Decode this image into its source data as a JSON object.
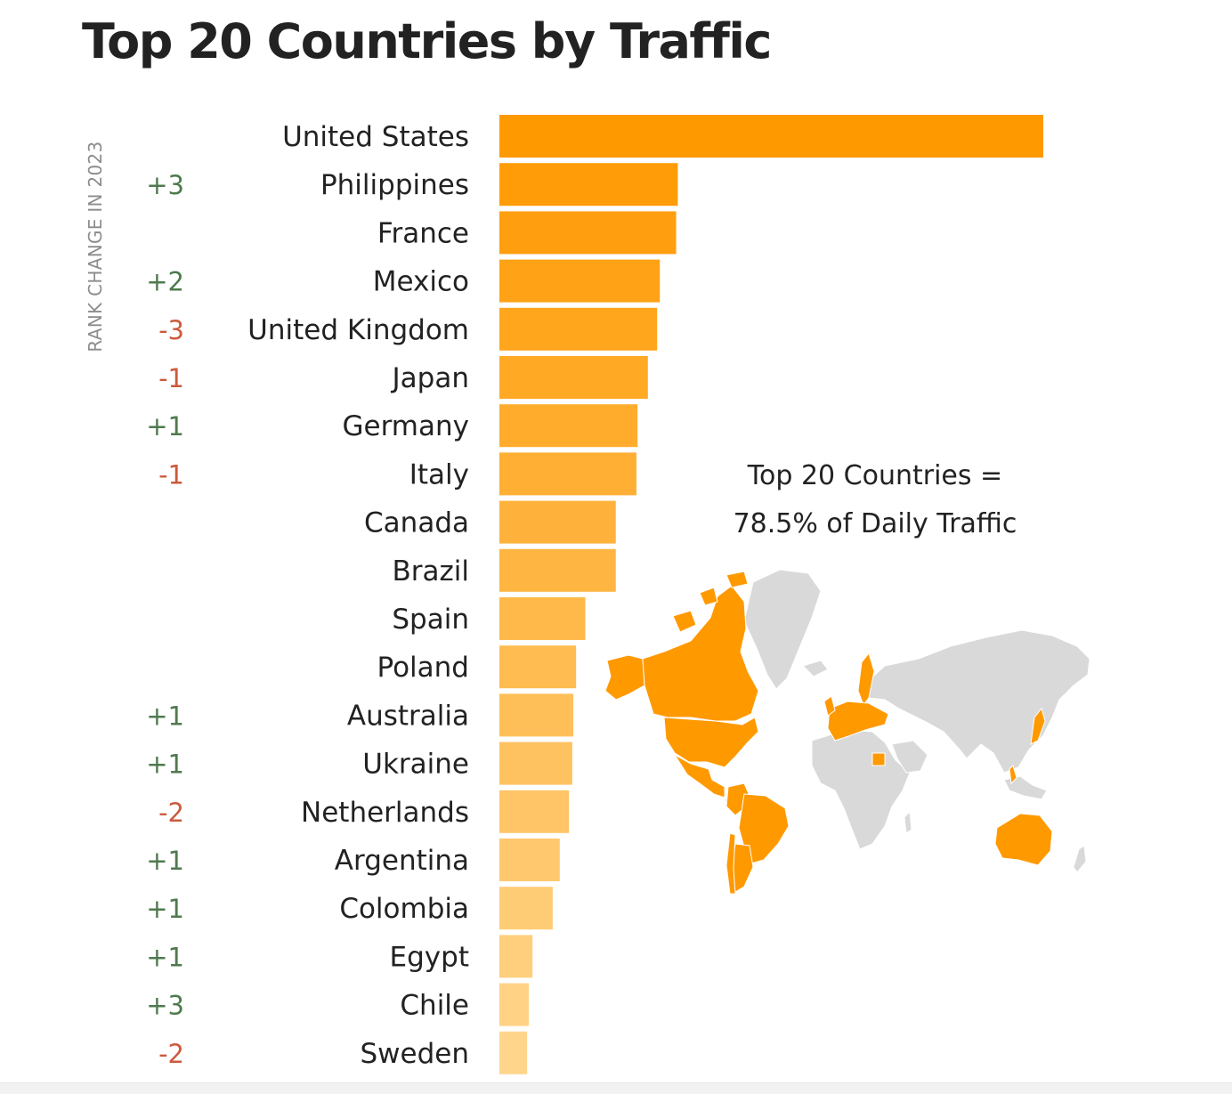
{
  "title": "Top 20 Countries by Traffic",
  "annotation": {
    "line1": "Top 20 Countries =",
    "line2": "78.5% of Daily Traffic"
  },
  "colors": {
    "bar_top": "#ff9900",
    "bar_bottom": "#ffd58c",
    "rank_up": "#4e7a4e",
    "rank_down": "#cc5a3c",
    "map_highlight": "#ff9900",
    "map_base": "#d9d9d9"
  },
  "chart_data": {
    "type": "bar",
    "orientation": "horizontal",
    "title": "Top 20 Countries by Traffic",
    "rank_change_label": "RANK CHANGE IN 2023",
    "categories": [
      "United States",
      "Philippines",
      "France",
      "Mexico",
      "United Kingdom",
      "Japan",
      "Germany",
      "Italy",
      "Canada",
      "Brazil",
      "Spain",
      "Poland",
      "Australia",
      "Ukraine",
      "Netherlands",
      "Argentina",
      "Colombia",
      "Egypt",
      "Chile",
      "Sweden"
    ],
    "values": [
      100,
      32.8,
      32.5,
      29.5,
      29.0,
      27.3,
      25.4,
      25.2,
      21.4,
      21.4,
      15.8,
      14.1,
      13.6,
      13.4,
      12.8,
      11.1,
      9.8,
      6.1,
      5.4,
      5.1
    ],
    "rank_change": [
      "",
      "+3",
      "",
      "+2",
      "-3",
      "-1",
      "+1",
      "-1",
      "",
      "",
      "",
      "",
      "+1",
      "+1",
      "-2",
      "+1",
      "+1",
      "+1",
      "+3",
      "-2"
    ],
    "xlim": [
      0,
      100
    ],
    "axis_visible": false,
    "grid": false,
    "legend": "none"
  }
}
